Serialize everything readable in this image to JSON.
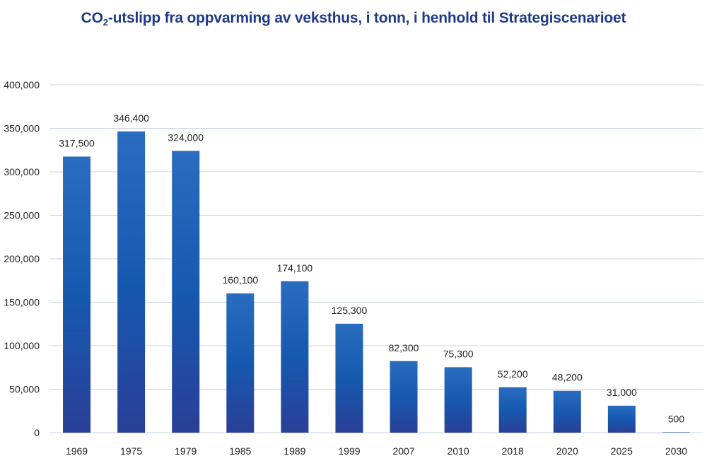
{
  "title": {
    "prefix": "CO",
    "subscript": "2",
    "suffix": "-utslipp fra oppvarming av veksthus, i tonn, i henhold til Strategiscenarioet"
  },
  "colors": {
    "bar_top": "#2a6cbf",
    "bar_mid": "#1659b0",
    "bar_bottom": "#2a3f96",
    "grid": "#c9d2e0",
    "title": "#1f3a8a"
  },
  "chart_data": {
    "type": "bar",
    "title": "CO2-utslipp fra oppvarming av veksthus, i tonn, i henhold til Strategiscenarioet",
    "xlabel": "",
    "ylabel": "",
    "categories": [
      "1969",
      "1975",
      "1979",
      "1985",
      "1989",
      "1999",
      "2007",
      "2010",
      "2018",
      "2020",
      "2025",
      "2030"
    ],
    "values": [
      317500,
      346400,
      324000,
      160100,
      174100,
      125300,
      82300,
      75300,
      52200,
      48200,
      31000,
      500
    ],
    "data_labels": [
      "317,500",
      "346,400",
      "324,000",
      "160,100",
      "174,100",
      "125,300",
      "82,300",
      "75,300",
      "52,200",
      "48,200",
      "31,000",
      "500"
    ],
    "ylim": [
      0,
      400000
    ],
    "yticks": [
      0,
      50000,
      100000,
      150000,
      200000,
      250000,
      300000,
      350000,
      400000
    ],
    "ytick_labels": [
      "0",
      "50,000",
      "100,000",
      "150,000",
      "200,000",
      "250,000",
      "300,000",
      "350,000",
      "400,000"
    ],
    "grid": true,
    "legend": "none"
  }
}
